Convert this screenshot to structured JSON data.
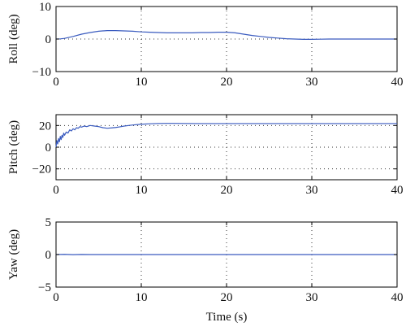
{
  "series_color": "#3a5bbf",
  "chart_data": [
    {
      "type": "line",
      "ylabel": "Roll (deg)",
      "xlim": [
        0,
        40
      ],
      "ylim": [
        -10,
        10
      ],
      "xticks": [
        "0",
        "10",
        "20",
        "30",
        "40"
      ],
      "yticks": [
        "10",
        "0",
        "−10"
      ],
      "ytick_values": [
        10,
        0,
        -10
      ],
      "grid": true,
      "series": [
        {
          "x": [
            0,
            0.5,
            1,
            2,
            3,
            4,
            5,
            6,
            7,
            8,
            9,
            10,
            11,
            12,
            13,
            14,
            15,
            16,
            17,
            18,
            19,
            20,
            21,
            22,
            23,
            24,
            25,
            26,
            27,
            28,
            29,
            30,
            31,
            32,
            33,
            34,
            35,
            36,
            37,
            38,
            39,
            40
          ],
          "y": [
            0,
            0.05,
            0.2,
            0.8,
            1.5,
            2.0,
            2.4,
            2.6,
            2.6,
            2.5,
            2.4,
            2.2,
            2.1,
            2.0,
            1.9,
            1.9,
            1.9,
            1.9,
            2.0,
            2.0,
            2.1,
            2.1,
            1.9,
            1.5,
            1.1,
            0.8,
            0.5,
            0.3,
            0.1,
            0.0,
            -0.1,
            -0.1,
            -0.05,
            0.0,
            0.0,
            0.0,
            0.0,
            0.0,
            0.0,
            0.0,
            0.0,
            0.0
          ]
        }
      ]
    },
    {
      "type": "line",
      "ylabel": "Pitch (deg)",
      "xlim": [
        0,
        40
      ],
      "ylim": [
        -30,
        30
      ],
      "xticks": [
        "0",
        "10",
        "20",
        "30",
        "40"
      ],
      "yticks": [
        "20",
        "0",
        "−20"
      ],
      "ytick_values": [
        20,
        0,
        -20
      ],
      "grid": true,
      "series": [
        {
          "x": [
            0,
            0.1,
            0.2,
            0.3,
            0.4,
            0.5,
            0.6,
            0.7,
            0.8,
            0.9,
            1.0,
            1.2,
            1.4,
            1.6,
            1.8,
            2.0,
            2.2,
            2.4,
            2.6,
            2.8,
            3.0,
            3.3,
            3.6,
            4.0,
            4.5,
            5.0,
            5.5,
            6.0,
            6.5,
            7.0,
            7.5,
            8.0,
            9.0,
            10.0,
            11.0,
            12.0,
            13.0,
            14.0,
            15.0,
            17.0,
            20.0,
            25.0,
            30.0,
            35.0,
            40.0
          ],
          "y": [
            0,
            6,
            3,
            8,
            5,
            10,
            7,
            11,
            9,
            13,
            11,
            14,
            13,
            16,
            15,
            17,
            16,
            18,
            17.5,
            19,
            18.5,
            19.5,
            19,
            20,
            19.5,
            19,
            18,
            17.5,
            17.8,
            18.2,
            18.8,
            19.5,
            20.5,
            21.2,
            21.6,
            21.9,
            22,
            22,
            21.9,
            21.8,
            21.8,
            21.8,
            21.8,
            21.8,
            21.8
          ]
        }
      ]
    },
    {
      "type": "line",
      "ylabel": "Yaw (deg)",
      "xlabel": "Time (s)",
      "xlim": [
        0,
        40
      ],
      "ylim": [
        -5,
        5
      ],
      "xticks": [
        "0",
        "10",
        "20",
        "30",
        "40"
      ],
      "yticks": [
        "5",
        "0",
        "−5"
      ],
      "ytick_values": [
        5,
        0,
        -5
      ],
      "grid": true,
      "series": [
        {
          "x": [
            0,
            1,
            2,
            3,
            4,
            10,
            20,
            30,
            40
          ],
          "y": [
            0,
            0.03,
            -0.02,
            0.02,
            0,
            0,
            0,
            0,
            0
          ]
        }
      ]
    }
  ]
}
